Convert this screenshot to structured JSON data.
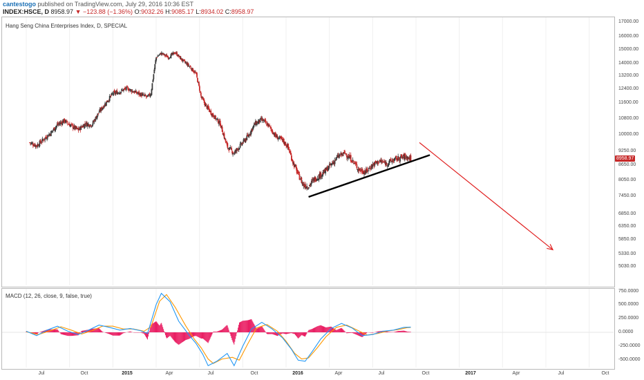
{
  "header": {
    "author": "cantestogo",
    "published": "published on TradingView.com, July 29, 2016 10:36 EST",
    "symbol": "INDEX:HSCE, D",
    "last": "8958.97",
    "change": "▼ −123.88 (−1.36%)",
    "open_label": "O:",
    "open": "9032.26",
    "high_label": "H:",
    "high": "9085.17",
    "low_label": "L:",
    "low": "8934.02",
    "close_label": "C:",
    "close": "8958.97"
  },
  "main_panel": {
    "title": "Hang Seng China Enterprises Index, D, SPECIAL",
    "price_tag": "8958.97",
    "y_ticks": [
      "17000.00",
      "16000.00",
      "15000.00",
      "14000.00",
      "13200.00",
      "12400.00",
      "11600.00",
      "10800.00",
      "10000.00",
      "9250.00",
      "8650.00",
      "8050.00",
      "7450.00",
      "6850.00",
      "6350.00",
      "5850.00",
      "5330.00",
      "5030.00"
    ]
  },
  "macd_panel": {
    "title": "MACD (12, 26, close, 9, false, true)",
    "y_ticks": [
      "750.0000",
      "500.0000",
      "250.0000",
      "0.0000",
      "-250.0000",
      "-500.0000"
    ]
  },
  "x_axis": {
    "ticks": [
      {
        "label": "Jul",
        "bold": false
      },
      {
        "label": "Oct",
        "bold": false
      },
      {
        "label": "2015",
        "bold": true
      },
      {
        "label": "Apr",
        "bold": false
      },
      {
        "label": "Jul",
        "bold": false
      },
      {
        "label": "Oct",
        "bold": false
      },
      {
        "label": "2016",
        "bold": true
      },
      {
        "label": "Apr",
        "bold": false
      },
      {
        "label": "Jul",
        "bold": false
      },
      {
        "label": "Oct",
        "bold": false
      },
      {
        "label": "2017",
        "bold": true
      },
      {
        "label": "Apr",
        "bold": false
      },
      {
        "label": "Jul",
        "bold": false
      },
      {
        "label": "Oct",
        "bold": false
      }
    ]
  },
  "colors": {
    "up": "#3a3a3a",
    "down": "#c62828",
    "trendline": "#000000",
    "arrow": "#e02020",
    "macd": "#2196f3",
    "signal": "#ff9800",
    "hist": "#e91e63",
    "border": "#b8b8b8"
  },
  "price_series": [
    [
      2014.52,
      9700
    ],
    [
      2014.56,
      9550
    ],
    [
      2014.6,
      9850
    ],
    [
      2014.64,
      10150
    ],
    [
      2014.68,
      10550
    ],
    [
      2014.72,
      10750
    ],
    [
      2014.76,
      10500
    ],
    [
      2014.8,
      10300
    ],
    [
      2014.84,
      10600
    ],
    [
      2014.88,
      10550
    ],
    [
      2014.92,
      11200
    ],
    [
      2014.96,
      11700
    ],
    [
      2015.0,
      12200
    ],
    [
      2015.04,
      12300
    ],
    [
      2015.08,
      12500
    ],
    [
      2015.12,
      12300
    ],
    [
      2015.16,
      12150
    ],
    [
      2015.2,
      12000
    ],
    [
      2015.22,
      12200
    ],
    [
      2015.25,
      14500
    ],
    [
      2015.28,
      14800
    ],
    [
      2015.32,
      14500
    ],
    [
      2015.36,
      14850
    ],
    [
      2015.4,
      14300
    ],
    [
      2015.44,
      13900
    ],
    [
      2015.48,
      13400
    ],
    [
      2015.51,
      12000
    ],
    [
      2015.54,
      11500
    ],
    [
      2015.58,
      11000
    ],
    [
      2015.62,
      10600
    ],
    [
      2015.66,
      9500
    ],
    [
      2015.7,
      9200
    ],
    [
      2015.74,
      9600
    ],
    [
      2015.78,
      10000
    ],
    [
      2015.82,
      10600
    ],
    [
      2015.86,
      10800
    ],
    [
      2015.9,
      10500
    ],
    [
      2015.94,
      10000
    ],
    [
      2015.98,
      9800
    ],
    [
      2016.01,
      9500
    ],
    [
      2016.04,
      8800
    ],
    [
      2016.07,
      8300
    ],
    [
      2016.1,
      7900
    ],
    [
      2016.13,
      7850
    ],
    [
      2016.16,
      8100
    ],
    [
      2016.19,
      8250
    ],
    [
      2016.22,
      8400
    ],
    [
      2016.26,
      8700
    ],
    [
      2016.3,
      9050
    ],
    [
      2016.34,
      9200
    ],
    [
      2016.38,
      8900
    ],
    [
      2016.42,
      8500
    ],
    [
      2016.46,
      8400
    ],
    [
      2016.5,
      8700
    ],
    [
      2016.54,
      8850
    ],
    [
      2016.58,
      8750
    ],
    [
      2016.62,
      8900
    ],
    [
      2016.66,
      9000
    ],
    [
      2016.69,
      9050
    ],
    [
      2016.72,
      8960
    ]
  ],
  "trendline": [
    [
      2016.13,
      7450
    ],
    [
      2016.83,
      9120
    ]
  ],
  "arrow": [
    [
      2016.77,
      9700
    ],
    [
      2017.54,
      5500
    ]
  ],
  "macd_series": [
    [
      2014.5,
      20
    ],
    [
      2014.56,
      -60
    ],
    [
      2014.62,
      40
    ],
    [
      2014.68,
      110
    ],
    [
      2014.74,
      20
    ],
    [
      2014.8,
      -40
    ],
    [
      2014.86,
      40
    ],
    [
      2014.92,
      130
    ],
    [
      2014.98,
      90
    ],
    [
      2015.04,
      40
    ],
    [
      2015.1,
      70
    ],
    [
      2015.16,
      30
    ],
    [
      2015.2,
      -20
    ],
    [
      2015.25,
      500
    ],
    [
      2015.28,
      700
    ],
    [
      2015.33,
      550
    ],
    [
      2015.38,
      200
    ],
    [
      2015.44,
      -50
    ],
    [
      2015.48,
      -200
    ],
    [
      2015.52,
      -400
    ],
    [
      2015.55,
      -600
    ],
    [
      2015.6,
      -520
    ],
    [
      2015.66,
      -380
    ],
    [
      2015.7,
      -600
    ],
    [
      2015.75,
      -250
    ],
    [
      2015.8,
      60
    ],
    [
      2015.86,
      180
    ],
    [
      2015.92,
      60
    ],
    [
      2015.98,
      -100
    ],
    [
      2016.03,
      -300
    ],
    [
      2016.07,
      -500
    ],
    [
      2016.11,
      -520
    ],
    [
      2016.15,
      -350
    ],
    [
      2016.2,
      -120
    ],
    [
      2016.26,
      70
    ],
    [
      2016.32,
      160
    ],
    [
      2016.38,
      80
    ],
    [
      2016.44,
      -60
    ],
    [
      2016.5,
      -40
    ],
    [
      2016.56,
      20
    ],
    [
      2016.62,
      40
    ],
    [
      2016.68,
      90
    ],
    [
      2016.72,
      95
    ]
  ],
  "signal_series": [
    [
      2014.5,
      10
    ],
    [
      2014.57,
      -40
    ],
    [
      2014.64,
      30
    ],
    [
      2014.7,
      100
    ],
    [
      2014.76,
      40
    ],
    [
      2014.82,
      -30
    ],
    [
      2014.88,
      30
    ],
    [
      2014.94,
      110
    ],
    [
      2015.0,
      110
    ],
    [
      2015.06,
      60
    ],
    [
      2015.12,
      60
    ],
    [
      2015.18,
      20
    ],
    [
      2015.22,
      100
    ],
    [
      2015.27,
      560
    ],
    [
      2015.31,
      680
    ],
    [
      2015.36,
      450
    ],
    [
      2015.42,
      120
    ],
    [
      2015.47,
      -120
    ],
    [
      2015.51,
      -280
    ],
    [
      2015.55,
      -480
    ],
    [
      2015.58,
      -560
    ],
    [
      2015.63,
      -480
    ],
    [
      2015.69,
      -450
    ],
    [
      2015.73,
      -500
    ],
    [
      2015.78,
      -200
    ],
    [
      2015.83,
      80
    ],
    [
      2015.89,
      140
    ],
    [
      2015.95,
      20
    ],
    [
      2016.0,
      -160
    ],
    [
      2016.05,
      -380
    ],
    [
      2016.09,
      -480
    ],
    [
      2016.13,
      -460
    ],
    [
      2016.18,
      -280
    ],
    [
      2016.23,
      -80
    ],
    [
      2016.29,
      90
    ],
    [
      2016.35,
      130
    ],
    [
      2016.41,
      40
    ],
    [
      2016.47,
      -50
    ],
    [
      2016.53,
      -20
    ],
    [
      2016.59,
      25
    ],
    [
      2016.65,
      50
    ],
    [
      2016.7,
      85
    ],
    [
      2016.72,
      90
    ]
  ]
}
